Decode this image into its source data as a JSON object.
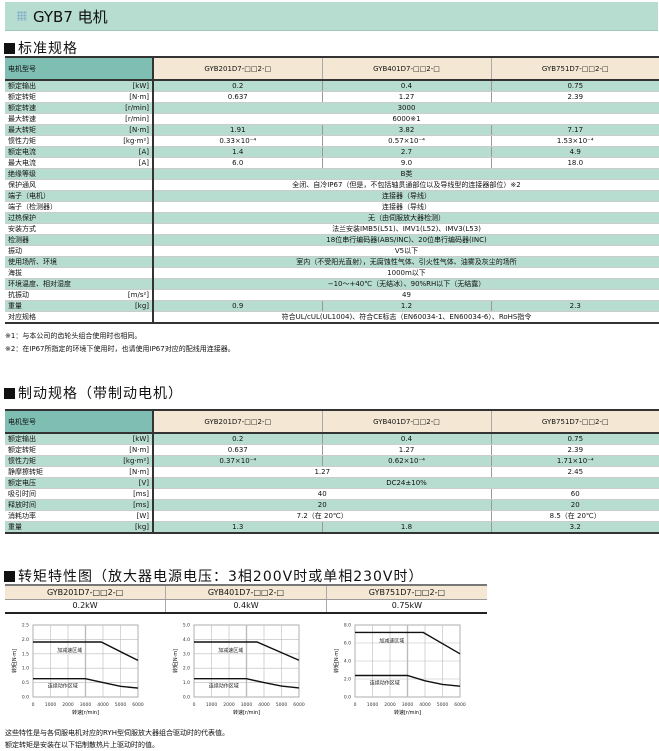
{
  "header": {
    "title": "GYB7 电机"
  },
  "standard": {
    "title": "标准规格",
    "model_label": "电机型号",
    "models": [
      "GYB201D7-□□2-□",
      "GYB401D7-□□2-□",
      "GYB751D7-□□2-□"
    ],
    "rows": [
      {
        "label": "额定输出",
        "unit": "[kW]",
        "cells": [
          "0.2",
          "0.4",
          "0.75"
        ]
      },
      {
        "label": "额定转矩",
        "unit": "[N·m]",
        "cells": [
          "0.637",
          "1.27",
          "2.39"
        ]
      },
      {
        "label": "额定转速",
        "unit": "[r/min]",
        "cells": [
          "3000"
        ]
      },
      {
        "label": "最大转速",
        "unit": "[r/min]",
        "cells": [
          "6000※1"
        ]
      },
      {
        "label": "最大转矩",
        "unit": "[N·m]",
        "cells": [
          "1.91",
          "3.82",
          "7.17"
        ]
      },
      {
        "label": "惯性力矩",
        "unit": "[kg·m²]",
        "cells": [
          "0.33×10⁻⁴",
          "0.57×10⁻⁴",
          "1.53×10⁻⁴"
        ]
      },
      {
        "label": "额定电流",
        "unit": "[A]",
        "cells": [
          "1.4",
          "2.7",
          "4.9"
        ]
      },
      {
        "label": "最大电流",
        "unit": "[A]",
        "cells": [
          "6.0",
          "9.0",
          "18.0"
        ]
      },
      {
        "label": "绝缘等级",
        "unit": "",
        "cells": [
          "B类"
        ]
      },
      {
        "label": "保护通风",
        "unit": "",
        "cells": [
          "全闭、自冷IP67（但是，不包括轴贯通部位以及导线型的连接器部位）※2"
        ]
      },
      {
        "label": "端子（电机）",
        "unit": "",
        "cells": [
          "连接器（导线）"
        ]
      },
      {
        "label": "端子（检测器）",
        "unit": "",
        "cells": [
          "连接器（导线）"
        ]
      },
      {
        "label": "过热保护",
        "unit": "",
        "cells": [
          "无（由伺服放大器检测）"
        ]
      },
      {
        "label": "安装方式",
        "unit": "",
        "cells": [
          "法兰安装IMB5(L51)、IMV1(L52)、IMV3(L53)"
        ]
      },
      {
        "label": "检测器",
        "unit": "",
        "cells": [
          "18位串行编码器(ABS/INC)、20位串行编码器(INC)"
        ]
      },
      {
        "label": "振动",
        "unit": "",
        "cells": [
          "V5以下"
        ]
      },
      {
        "label": "使用场所、环境",
        "unit": "",
        "cells": [
          "室内（不受阳光直射），无腐蚀性气体、引火性气体、油雾及灰尘的场所"
        ]
      },
      {
        "label": "海拔",
        "unit": "",
        "cells": [
          "1000m以下"
        ]
      },
      {
        "label": "环境温度、相对湿度",
        "unit": "",
        "cells": [
          "−10～+40℃（无结冰）、90%RH以下（无结露）"
        ]
      },
      {
        "label": "抗振动",
        "unit": "[m/s²]",
        "cells": [
          "49"
        ]
      },
      {
        "label": "重量",
        "unit": "[kg]",
        "cells": [
          "0.9",
          "1.2",
          "2.3"
        ]
      },
      {
        "label": "对应规格",
        "unit": "",
        "cells": [
          "符合UL/cUL(UL1004)、符合CE标志（EN60034-1、EN60034-6）、RoHS指令"
        ]
      }
    ],
    "notes": [
      "※1：与本公司的齿轮头组合使用时也相同。",
      "※2：在IP67所指定的环境下使用时，也请使用IP67对应的配线用连接器。"
    ]
  },
  "brake": {
    "title": "制动规格（带制动电机）",
    "model_label": "电机型号",
    "models": [
      "GYB201D7-□□2-□",
      "GYB401D7-□□2-□",
      "GYB751D7-□□2-□"
    ],
    "rows": [
      {
        "label": "额定输出",
        "unit": "[kW]",
        "cells": [
          "0.2",
          "0.4",
          "0.75"
        ]
      },
      {
        "label": "额定转矩",
        "unit": "[N·m]",
        "cells": [
          "0.637",
          "1.27",
          "2.39"
        ]
      },
      {
        "label": "惯性力矩",
        "unit": "[kg·m²]",
        "cells": [
          "0.37×10⁻⁴",
          "0.62×10⁻⁴",
          "1.71×10⁻⁴"
        ]
      },
      {
        "label": "静摩擦转矩",
        "unit": "[N·m]",
        "cells": [
          "1.27",
          "2.45"
        ]
      },
      {
        "label": "额定电压",
        "unit": "[V]",
        "cells": [
          "DC24±10%"
        ]
      },
      {
        "label": "吸引时间",
        "unit": "[ms]",
        "cells": [
          "40",
          "60"
        ]
      },
      {
        "label": "释放时间",
        "unit": "[ms]",
        "cells": [
          "20",
          "20"
        ]
      },
      {
        "label": "消耗功率",
        "unit": "[W]",
        "cells": [
          "7.2（在 20℃）",
          "8.5（在 20℃）"
        ]
      },
      {
        "label": "重量",
        "unit": "[kg]",
        "cells": [
          "1.3",
          "1.8",
          "3.2"
        ]
      }
    ]
  },
  "torque": {
    "title": "转矩特性图（放大器电源电压：3相200V时或单相230V时）",
    "models": [
      "GYB201D7-□□2-□",
      "GYB401D7-□□2-□",
      "GYB751D7-□□2-□"
    ],
    "powers": [
      "0.2kW",
      "0.4kW",
      "0.75kW"
    ],
    "notes": [
      "这些特性是与各伺服电机对应的RYH型伺服放大器组合驱动时的代表值。",
      "额定转矩是安装在以下铝制散热片上驱动时的值。"
    ]
  },
  "chart_data": [
    {
      "type": "line",
      "xlabel": "转速[r/min]",
      "ylabel": "转矩[N·m]",
      "xlim": [
        0,
        6000
      ],
      "ylim": [
        0,
        2.5
      ],
      "xticks": [
        0,
        1000,
        2000,
        3000,
        4000,
        5000,
        6000
      ],
      "yticks": [
        "0.0",
        "0.5",
        "1.0",
        "1.5",
        "2.0",
        "2.5"
      ],
      "grid": true,
      "series": [
        {
          "name": "加减速区域",
          "x": [
            0,
            3900,
            6000
          ],
          "y": [
            1.91,
            1.91,
            1.27
          ]
        },
        {
          "name": "连续动作区域",
          "x": [
            0,
            3000,
            4000,
            5000,
            6000
          ],
          "y": [
            0.637,
            0.637,
            0.5,
            0.37,
            0.31
          ]
        }
      ]
    },
    {
      "type": "line",
      "xlabel": "转速[r/min]",
      "ylabel": "转矩[N·m]",
      "xlim": [
        0,
        6000
      ],
      "ylim": [
        0,
        5.0
      ],
      "xticks": [
        0,
        1000,
        2000,
        3000,
        4000,
        5000,
        6000
      ],
      "yticks": [
        "0.0",
        "1.0",
        "2.0",
        "3.0",
        "4.0",
        "5.0"
      ],
      "grid": true,
      "series": [
        {
          "name": "加减速区域",
          "x": [
            0,
            3600,
            6000
          ],
          "y": [
            3.82,
            3.82,
            2.55
          ]
        },
        {
          "name": "连续动作区域",
          "x": [
            0,
            3000,
            4000,
            5000,
            6000
          ],
          "y": [
            1.27,
            1.27,
            1.0,
            0.76,
            0.63
          ]
        }
      ]
    },
    {
      "type": "line",
      "xlabel": "转速[r/min]",
      "ylabel": "转矩[N·m]",
      "xlim": [
        0,
        6000
      ],
      "ylim": [
        0,
        8.0
      ],
      "xticks": [
        0,
        1000,
        2000,
        3000,
        4000,
        5000,
        6000
      ],
      "yticks": [
        "0.0",
        "2.0",
        "4.0",
        "6.0",
        "8.0"
      ],
      "grid": true,
      "series": [
        {
          "name": "加减速区域",
          "x": [
            0,
            3900,
            6000
          ],
          "y": [
            7.17,
            7.17,
            4.8
          ]
        },
        {
          "name": "连续动作区域",
          "x": [
            0,
            3000,
            4000,
            5000,
            6000
          ],
          "y": [
            2.39,
            2.39,
            1.8,
            1.4,
            1.2
          ]
        }
      ]
    }
  ]
}
